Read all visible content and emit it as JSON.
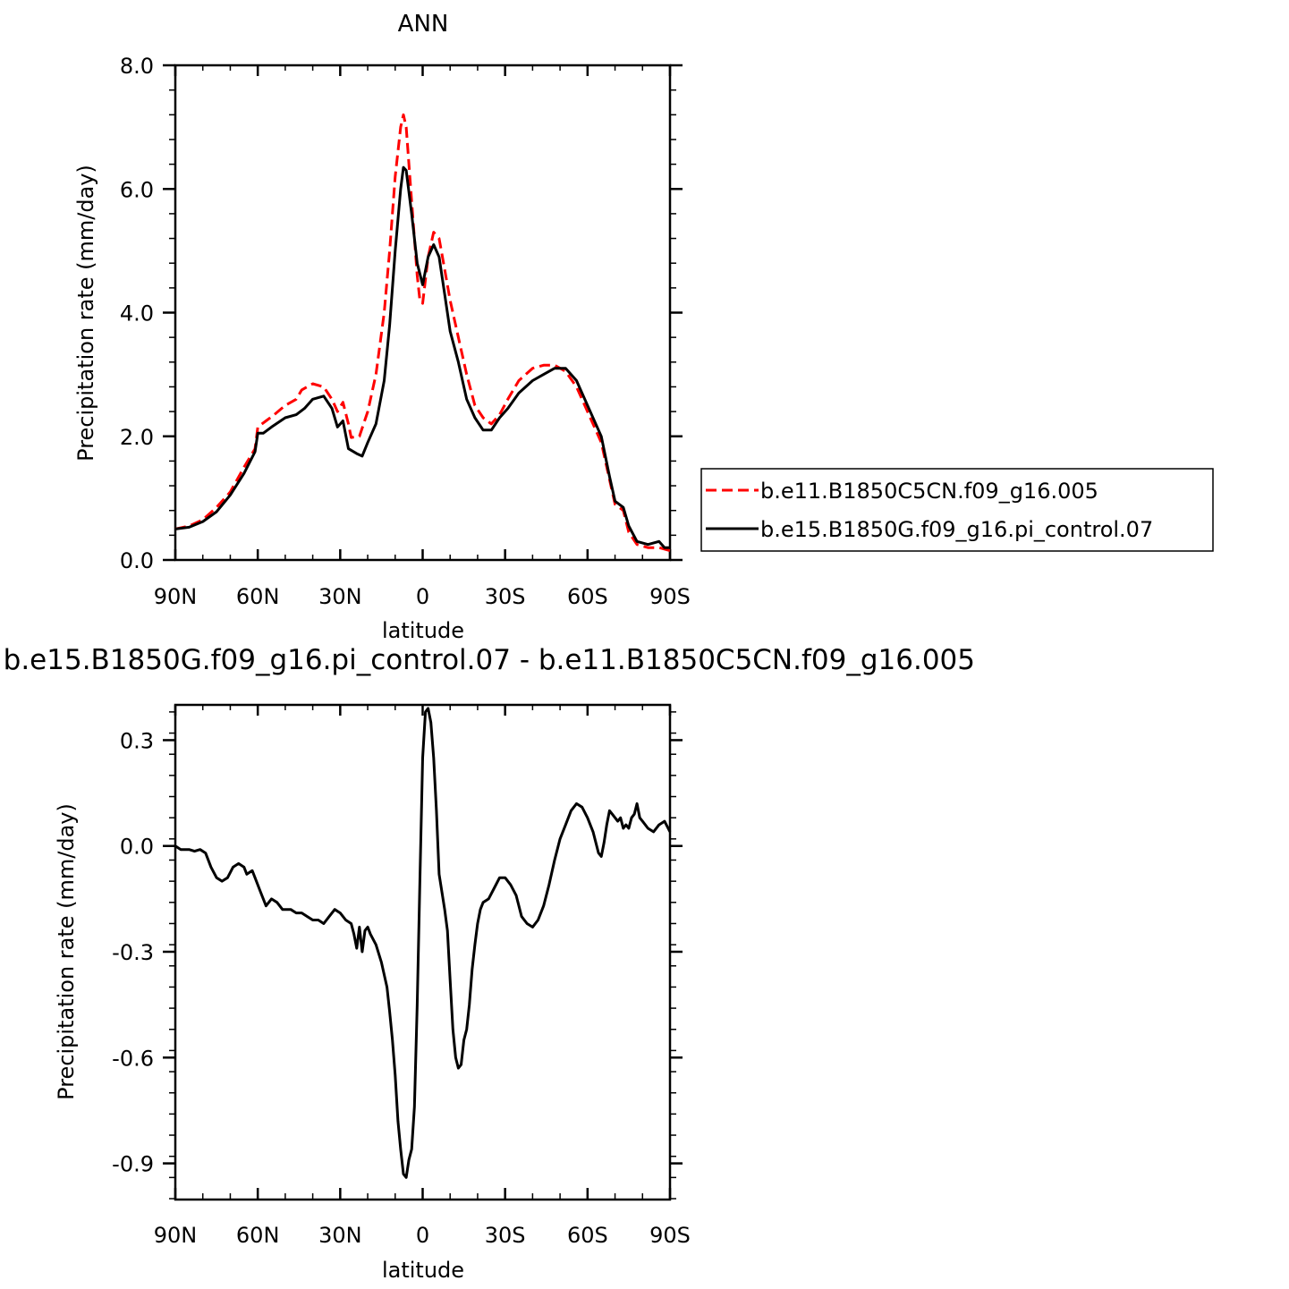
{
  "chart_data": [
    {
      "type": "line",
      "title": "ANN",
      "xlabel": "latitude",
      "ylabel": "Precipitation rate (mm/day)",
      "xlim": [
        -90,
        90
      ],
      "ylim": [
        0,
        8
      ],
      "x_direction": "90N on left, 90S on right",
      "xticks": [
        -90,
        -60,
        -30,
        0,
        30,
        60,
        90
      ],
      "xtick_labels": [
        "90N",
        "60N",
        "30N",
        "0",
        "30S",
        "60S",
        "90S"
      ],
      "yticks": [
        0,
        2,
        4,
        6,
        8
      ],
      "ytick_labels": [
        "0.0",
        "2.0",
        "4.0",
        "6.0",
        "8.0"
      ],
      "grid": false,
      "legend_position": "right, outside plot",
      "series": [
        {
          "name": "b.e11.B1850C5CN.f09_g16.005",
          "color": "#ff0000",
          "style": "dashed",
          "points": [
            [
              -90,
              0.5
            ],
            [
              -85,
              0.55
            ],
            [
              -80,
              0.65
            ],
            [
              -75,
              0.85
            ],
            [
              -70,
              1.1
            ],
            [
              -65,
              1.5
            ],
            [
              -61,
              1.8
            ],
            [
              -60,
              2.15
            ],
            [
              -57,
              2.25
            ],
            [
              -54,
              2.35
            ],
            [
              -50,
              2.5
            ],
            [
              -46,
              2.6
            ],
            [
              -44,
              2.75
            ],
            [
              -40,
              2.85
            ],
            [
              -36,
              2.8
            ],
            [
              -33,
              2.6
            ],
            [
              -31,
              2.4
            ],
            [
              -29,
              2.55
            ],
            [
              -27,
              2.2
            ],
            [
              -26,
              1.98
            ],
            [
              -23,
              2.0
            ],
            [
              -20,
              2.4
            ],
            [
              -17,
              3.0
            ],
            [
              -14,
              4.0
            ],
            [
              -12,
              5.0
            ],
            [
              -10,
              6.2
            ],
            [
              -8,
              7.0
            ],
            [
              -7,
              7.2
            ],
            [
              -6,
              7.0
            ],
            [
              -4,
              5.8
            ],
            [
              -2,
              4.6
            ],
            [
              -1,
              4.2
            ],
            [
              0,
              4.15
            ],
            [
              2,
              4.9
            ],
            [
              4,
              5.3
            ],
            [
              6,
              5.2
            ],
            [
              8,
              4.7
            ],
            [
              10,
              4.2
            ],
            [
              13,
              3.6
            ],
            [
              16,
              3.0
            ],
            [
              19,
              2.5
            ],
            [
              22,
              2.3
            ],
            [
              25,
              2.2
            ],
            [
              28,
              2.35
            ],
            [
              31,
              2.6
            ],
            [
              35,
              2.9
            ],
            [
              40,
              3.1
            ],
            [
              44,
              3.15
            ],
            [
              48,
              3.15
            ],
            [
              52,
              3.05
            ],
            [
              56,
              2.8
            ],
            [
              60,
              2.4
            ],
            [
              65,
              1.9
            ],
            [
              68,
              1.3
            ],
            [
              70,
              0.9
            ],
            [
              73,
              0.8
            ],
            [
              75,
              0.45
            ],
            [
              78,
              0.25
            ],
            [
              82,
              0.2
            ],
            [
              86,
              0.2
            ],
            [
              90,
              0.15
            ]
          ]
        },
        {
          "name": "b.e15.B1850G.f09_g16.pi_control.07",
          "color": "#000000",
          "style": "solid",
          "points": [
            [
              -90,
              0.5
            ],
            [
              -85,
              0.53
            ],
            [
              -80,
              0.62
            ],
            [
              -75,
              0.78
            ],
            [
              -70,
              1.05
            ],
            [
              -65,
              1.4
            ],
            [
              -61,
              1.75
            ],
            [
              -60,
              2.05
            ],
            [
              -58,
              2.05
            ],
            [
              -55,
              2.15
            ],
            [
              -50,
              2.3
            ],
            [
              -46,
              2.35
            ],
            [
              -43,
              2.45
            ],
            [
              -40,
              2.6
            ],
            [
              -36,
              2.65
            ],
            [
              -33,
              2.45
            ],
            [
              -31,
              2.15
            ],
            [
              -29,
              2.25
            ],
            [
              -27,
              1.8
            ],
            [
              -24,
              1.72
            ],
            [
              -22,
              1.68
            ],
            [
              -20,
              1.9
            ],
            [
              -17,
              2.2
            ],
            [
              -14,
              2.9
            ],
            [
              -12,
              3.8
            ],
            [
              -10,
              5.0
            ],
            [
              -8,
              6.0
            ],
            [
              -7,
              6.35
            ],
            [
              -6,
              6.3
            ],
            [
              -4,
              5.6
            ],
            [
              -2,
              4.8
            ],
            [
              0,
              4.45
            ],
            [
              2,
              4.9
            ],
            [
              4,
              5.1
            ],
            [
              6,
              4.9
            ],
            [
              8,
              4.3
            ],
            [
              10,
              3.7
            ],
            [
              13,
              3.2
            ],
            [
              16,
              2.6
            ],
            [
              19,
              2.3
            ],
            [
              22,
              2.1
            ],
            [
              25,
              2.1
            ],
            [
              28,
              2.3
            ],
            [
              31,
              2.45
            ],
            [
              35,
              2.7
            ],
            [
              40,
              2.9
            ],
            [
              44,
              3.0
            ],
            [
              48,
              3.1
            ],
            [
              52,
              3.1
            ],
            [
              56,
              2.9
            ],
            [
              60,
              2.5
            ],
            [
              65,
              2.0
            ],
            [
              68,
              1.35
            ],
            [
              70,
              0.95
            ],
            [
              73,
              0.85
            ],
            [
              75,
              0.55
            ],
            [
              78,
              0.3
            ],
            [
              82,
              0.25
            ],
            [
              86,
              0.3
            ],
            [
              88,
              0.2
            ],
            [
              90,
              0.2
            ]
          ]
        }
      ]
    },
    {
      "type": "line",
      "title": "b.e15.B1850G.f09_g16.pi_control.07 - b.e11.B1850C5CN.f09_g16.005",
      "xlabel": "latitude",
      "ylabel": "Precipitation rate (mm/day)",
      "xlim": [
        -90,
        90
      ],
      "ylim": [
        -1.0,
        0.4
      ],
      "x_direction": "90N on left, 90S on right",
      "xticks": [
        -90,
        -60,
        -30,
        0,
        30,
        60,
        90
      ],
      "xtick_labels": [
        "90N",
        "60N",
        "30N",
        "0",
        "30S",
        "60S",
        "90S"
      ],
      "yticks": [
        -0.9,
        -0.6,
        -0.3,
        0.0,
        0.3
      ],
      "ytick_labels": [
        "-0.9",
        "-0.6",
        "-0.3",
        "0.0",
        "0.3"
      ],
      "grid": false,
      "series": [
        {
          "color": "#000000",
          "style": "solid",
          "points": [
            [
              -90,
              0.0
            ],
            [
              -88,
              -0.01
            ],
            [
              -85,
              -0.01
            ],
            [
              -83,
              -0.015
            ],
            [
              -81,
              -0.01
            ],
            [
              -79,
              -0.02
            ],
            [
              -77,
              -0.06
            ],
            [
              -75,
              -0.09
            ],
            [
              -73,
              -0.1
            ],
            [
              -71,
              -0.09
            ],
            [
              -69,
              -0.06
            ],
            [
              -67,
              -0.05
            ],
            [
              -65,
              -0.06
            ],
            [
              -64,
              -0.08
            ],
            [
              -62,
              -0.07
            ],
            [
              -61,
              -0.09
            ],
            [
              -59,
              -0.13
            ],
            [
              -57,
              -0.17
            ],
            [
              -55,
              -0.15
            ],
            [
              -53,
              -0.16
            ],
            [
              -51,
              -0.18
            ],
            [
              -48,
              -0.18
            ],
            [
              -46,
              -0.19
            ],
            [
              -44,
              -0.19
            ],
            [
              -42,
              -0.2
            ],
            [
              -40,
              -0.21
            ],
            [
              -38,
              -0.21
            ],
            [
              -36,
              -0.22
            ],
            [
              -34,
              -0.2
            ],
            [
              -32,
              -0.18
            ],
            [
              -30,
              -0.19
            ],
            [
              -28,
              -0.21
            ],
            [
              -26,
              -0.22
            ],
            [
              -25,
              -0.25
            ],
            [
              -24,
              -0.29
            ],
            [
              -23,
              -0.23
            ],
            [
              -22,
              -0.3
            ],
            [
              -21,
              -0.24
            ],
            [
              -20,
              -0.23
            ],
            [
              -19,
              -0.25
            ],
            [
              -17,
              -0.28
            ],
            [
              -15,
              -0.33
            ],
            [
              -13,
              -0.4
            ],
            [
              -12,
              -0.47
            ],
            [
              -11,
              -0.55
            ],
            [
              -10,
              -0.65
            ],
            [
              -9,
              -0.78
            ],
            [
              -8,
              -0.86
            ],
            [
              -7,
              -0.93
            ],
            [
              -6,
              -0.94
            ],
            [
              -5,
              -0.89
            ],
            [
              -4,
              -0.86
            ],
            [
              -3,
              -0.74
            ],
            [
              -2,
              -0.45
            ],
            [
              -1,
              -0.1
            ],
            [
              0,
              0.25
            ],
            [
              1,
              0.38
            ],
            [
              2,
              0.39
            ],
            [
              3,
              0.35
            ],
            [
              4,
              0.25
            ],
            [
              5,
              0.1
            ],
            [
              6,
              -0.08
            ],
            [
              7,
              -0.13
            ],
            [
              8,
              -0.18
            ],
            [
              9,
              -0.24
            ],
            [
              10,
              -0.38
            ],
            [
              11,
              -0.52
            ],
            [
              12,
              -0.6
            ],
            [
              13,
              -0.63
            ],
            [
              14,
              -0.62
            ],
            [
              15,
              -0.55
            ],
            [
              16,
              -0.52
            ],
            [
              17,
              -0.45
            ],
            [
              18,
              -0.35
            ],
            [
              19,
              -0.28
            ],
            [
              20,
              -0.22
            ],
            [
              21,
              -0.18
            ],
            [
              22,
              -0.16
            ],
            [
              24,
              -0.15
            ],
            [
              26,
              -0.12
            ],
            [
              28,
              -0.09
            ],
            [
              30,
              -0.09
            ],
            [
              32,
              -0.11
            ],
            [
              34,
              -0.14
            ],
            [
              36,
              -0.2
            ],
            [
              38,
              -0.22
            ],
            [
              40,
              -0.23
            ],
            [
              42,
              -0.21
            ],
            [
              44,
              -0.17
            ],
            [
              46,
              -0.11
            ],
            [
              48,
              -0.04
            ],
            [
              50,
              0.02
            ],
            [
              52,
              0.06
            ],
            [
              54,
              0.1
            ],
            [
              56,
              0.12
            ],
            [
              58,
              0.11
            ],
            [
              60,
              0.08
            ],
            [
              62,
              0.04
            ],
            [
              64,
              -0.02
            ],
            [
              65,
              -0.03
            ],
            [
              66,
              0.01
            ],
            [
              67,
              0.06
            ],
            [
              68,
              0.1
            ],
            [
              69,
              0.09
            ],
            [
              70,
              0.08
            ],
            [
              71,
              0.07
            ],
            [
              72,
              0.08
            ],
            [
              73,
              0.05
            ],
            [
              74,
              0.06
            ],
            [
              75,
              0.05
            ],
            [
              76,
              0.08
            ],
            [
              77,
              0.09
            ],
            [
              78,
              0.12
            ],
            [
              79,
              0.08
            ],
            [
              80,
              0.07
            ],
            [
              82,
              0.05
            ],
            [
              84,
              0.04
            ],
            [
              86,
              0.06
            ],
            [
              88,
              0.07
            ],
            [
              90,
              0.04
            ]
          ]
        }
      ]
    }
  ]
}
